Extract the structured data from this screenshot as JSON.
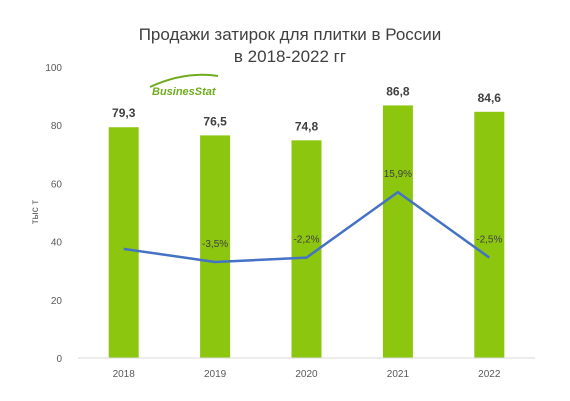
{
  "chart_data": {
    "type": "bar",
    "title_lines": [
      "Продажи затирок для плитки в России",
      "в 2018-2022 гг"
    ],
    "ylabel": "тыс т",
    "xlabel": "",
    "categories": [
      "2018",
      "2019",
      "2020",
      "2021",
      "2022"
    ],
    "ylim": [
      0,
      100
    ],
    "yticks": [
      "0",
      "20",
      "40",
      "60",
      "80",
      "100"
    ],
    "bar_color": "#8cc60f",
    "line_color": "#4472c4",
    "series": [
      {
        "type": "bar",
        "values": [
          79.3,
          76.5,
          74.8,
          86.8,
          84.6
        ],
        "labels": [
          "79,3",
          "76,5",
          "74,8",
          "86,8",
          "84,6"
        ]
      },
      {
        "type": "line",
        "values": [
          37.5,
          33,
          34.5,
          57,
          34.5
        ],
        "labels": [
          "",
          "-3,5%",
          "-2,2%",
          "15,9%",
          "-2,5%"
        ]
      }
    ],
    "grid": false,
    "legend": "none"
  },
  "logo": {
    "text": "BusinesStat"
  }
}
